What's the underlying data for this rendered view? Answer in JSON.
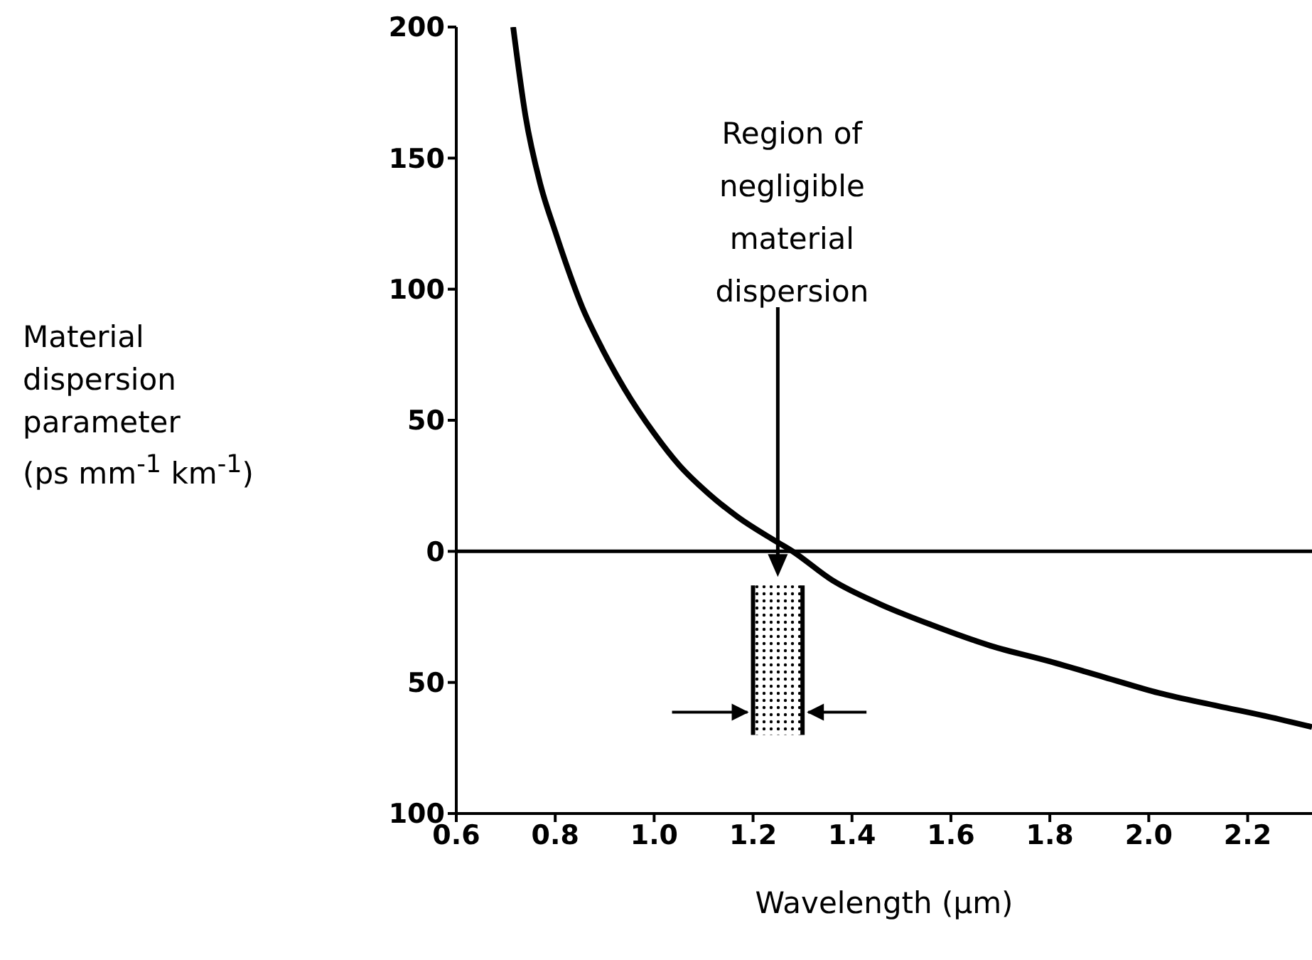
{
  "chart_data": {
    "type": "line",
    "xlabel": "Wavelength (μm)",
    "ylabel": "Material dispersion parameter (ps mm$^{-1}$ km$^{-1}$)",
    "x": [
      0.715,
      0.74,
      0.77,
      0.8,
      0.827,
      0.855,
      0.885,
      0.94,
      1.0,
      1.05,
      1.11,
      1.17,
      1.236,
      1.28,
      1.36,
      1.455,
      1.56,
      1.68,
      1.8,
      1.91,
      2.02,
      2.14,
      2.24,
      2.33
    ],
    "series": [
      {
        "color": "#000000",
        "values": [
          200,
          166,
          140,
          122,
          107,
          93,
          81,
          62,
          45,
          33,
          22,
          13,
          5,
          0,
          -11,
          -20,
          -28,
          -36,
          -42,
          -48,
          -54,
          -59,
          -63,
          -67
        ]
      }
    ],
    "xlim": [
      0.6,
      2.33
    ],
    "xticks": [
      0.6,
      0.8,
      {
        "value": 1,
        "label": "1.0"
      },
      1.2,
      1.4,
      1.6,
      1.8,
      {
        "value": 2,
        "label": "2.0"
      },
      2.2
    ],
    "ylim": [
      -100,
      200
    ],
    "yticks": [
      {
        "value": -100,
        "label": "100"
      },
      {
        "value": -50,
        "label": "50"
      },
      0,
      50,
      100,
      150,
      200
    ],
    "ref_lines": [
      {
        "axis": "y",
        "value": 0,
        "color": "#000000"
      }
    ],
    "bands": [
      {
        "axis": "x",
        "from": 1.2,
        "to": 1.3,
        "color": "#000000"
      }
    ],
    "annotations": [
      "Region of negligible material dispersion"
    ],
    "grid": false,
    "legend": false,
    "marker": "none",
    "line_style": "solid"
  }
}
